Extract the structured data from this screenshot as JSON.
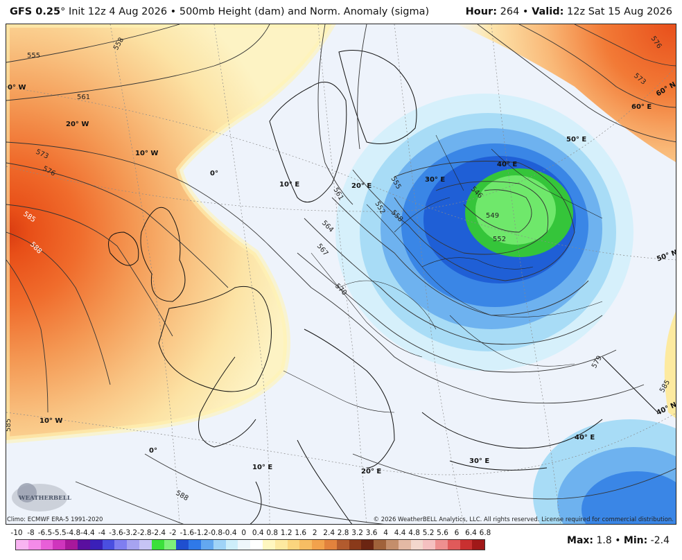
{
  "header": {
    "model": "GFS 0.25",
    "degree": "°",
    "init": "Init 12z 4 Aug 2026",
    "bullet": "•",
    "product": "500mb Height (dam) and Norm. Anomaly (sigma)",
    "hour_label": "Hour:",
    "hour": "264",
    "valid_label": "Valid:",
    "valid": "12z Sat 15 Aug 2026"
  },
  "map": {
    "meridians": [
      "0° W",
      "20° W",
      "10° W",
      "0°",
      "10° E",
      "20° E",
      "30° E",
      "40° E",
      "50° E",
      "60° E",
      "10° W",
      "0°",
      "10° E",
      "20° E",
      "30° E",
      "40° E"
    ],
    "parallels": [
      "60° N",
      "50° N",
      "40° N"
    ],
    "contours": [
      "555",
      "558",
      "561",
      "573",
      "576",
      "585",
      "588",
      "561",
      "564",
      "567",
      "570",
      "555",
      "558",
      "552",
      "546",
      "549",
      "552",
      "576",
      "573",
      "579",
      "585",
      "588",
      "585"
    ],
    "logo_text": "WEATHERBELL"
  },
  "footer": {
    "climo": "Climo: ECMWF ERA-5 1991-2020",
    "copyright": "© 2026 WeatherBELL Analytics, LLC. All rights reserved. License required for commercial distribution."
  },
  "colorbar": {
    "labels": [
      "-10",
      "-8",
      "-6.5",
      "-5.5",
      "-4.8",
      "-4.4",
      "-4",
      "-3.6",
      "-3.2",
      "-2.8",
      "-2.4",
      "-2",
      "-1.6",
      "-1.2",
      "-0.8",
      "-0.4",
      "0",
      "0.4",
      "0.8",
      "1.2",
      "1.6",
      "2",
      "2.4",
      "2.8",
      "3.2",
      "3.6",
      "4",
      "4.4",
      "4.8",
      "5.2",
      "5.6",
      "6",
      "6.4",
      "6.8"
    ],
    "colors": [
      "#f9b4f2",
      "#f48be8",
      "#e85fd8",
      "#cf35bd",
      "#a8189b",
      "#5a0f9f",
      "#3a20b8",
      "#4a4fe0",
      "#7f7ef0",
      "#a6a3f0",
      "#c7c4f5",
      "#3be03b",
      "#7ef07a",
      "#1f4fcf",
      "#2f79e8",
      "#63a8f0",
      "#9fd3f7",
      "#cdeefa",
      "#eef7fb",
      "#ffffff",
      "#fff7c0",
      "#fde9a0",
      "#fbd57e",
      "#f7bd63",
      "#f2a24c",
      "#e2823d",
      "#b25b2e",
      "#8a3a1a",
      "#6b2512",
      "#a0623a",
      "#c48e6b",
      "#e3b9a4",
      "#f3d7cd",
      "#f5c0c0",
      "#ee8f8f",
      "#e05a5a",
      "#c93030",
      "#a01818"
    ]
  },
  "stats": {
    "max_label": "Max:",
    "max": "1.8",
    "min_label": "Min:",
    "min": "-2.4"
  }
}
